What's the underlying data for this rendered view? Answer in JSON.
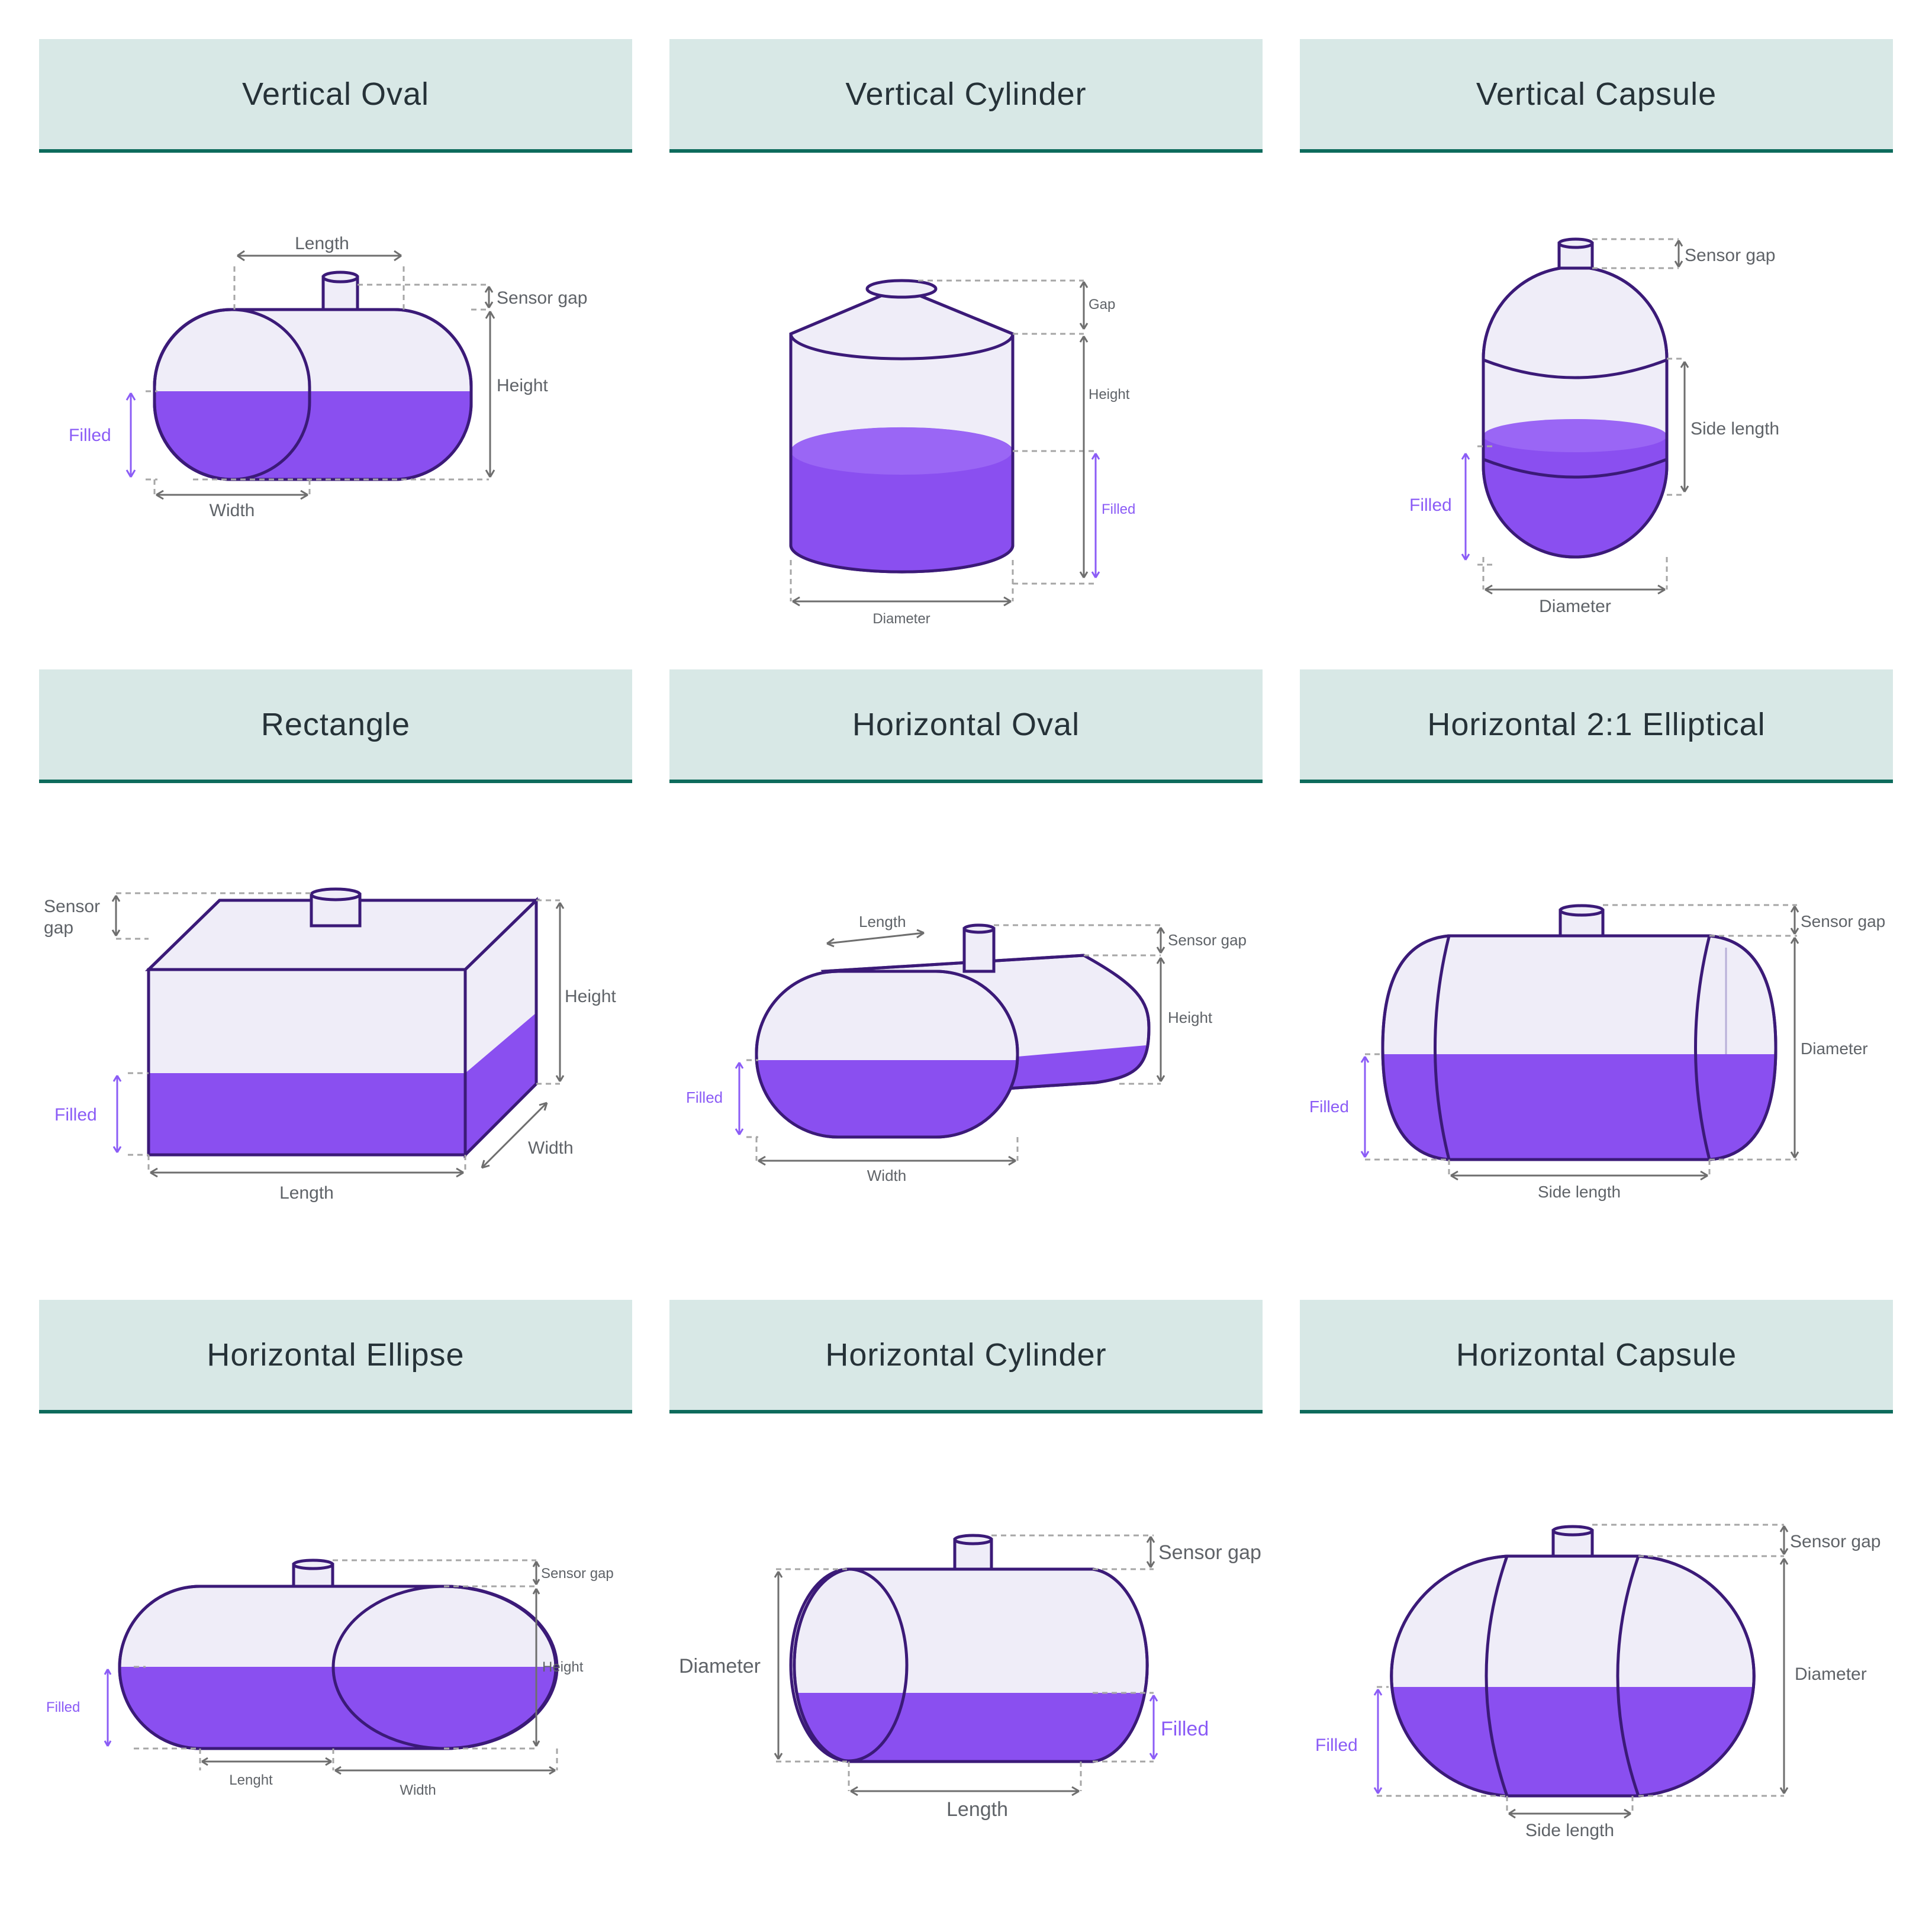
{
  "colors": {
    "header_bg": "#d8e8e6",
    "header_rule": "#0d6b5c",
    "tank_outline": "#3b1a78",
    "tank_empty": "#efedf8",
    "liquid": "#8a4ff0",
    "filled_label": "#8b5cf6",
    "dimension_label": "#5f6368"
  },
  "tanks": [
    {
      "title": "Vertical Oval",
      "labels": {
        "length": "Length",
        "sensor_gap": "Sensor gap",
        "height": "Height",
        "filled": "Filled",
        "width": "Width"
      }
    },
    {
      "title": "Vertical Cylinder",
      "labels": {
        "gap": "Gap",
        "height": "Height",
        "filled": "Filled",
        "diameter": "Diameter"
      }
    },
    {
      "title": "Vertical Capsule",
      "labels": {
        "sensor_gap": "Sensor gap",
        "side_length": "Side length",
        "filled": "Filled",
        "diameter": "Diameter"
      }
    },
    {
      "title": "Rectangle",
      "labels": {
        "sensor_line1": "Sensor",
        "sensor_line2": "gap",
        "height": "Height",
        "filled": "Filled",
        "width": "Width",
        "length": "Length"
      }
    },
    {
      "title": "Horizontal Oval",
      "labels": {
        "length": "Length",
        "sensor_gap": "Sensor gap",
        "height": "Height",
        "filled": "Filled",
        "width": "Width"
      }
    },
    {
      "title": "Horizontal 2:1 Elliptical",
      "labels": {
        "sensor_gap": "Sensor gap",
        "diameter": "Diameter",
        "filled": "Filled",
        "side_length": "Side length"
      }
    },
    {
      "title": "Horizontal Ellipse",
      "labels": {
        "sensor_gap": "Sensor gap",
        "height": "Height",
        "filled": "Filled",
        "length": "Lenght",
        "width": "Width"
      }
    },
    {
      "title": "Horizontal Cylinder",
      "labels": {
        "sensor_gap": "Sensor gap",
        "diameter": "Diameter",
        "filled": "Filled",
        "length": "Length"
      }
    },
    {
      "title": "Horizontal Capsule",
      "labels": {
        "sensor_gap": "Sensor gap",
        "diameter": "Diameter",
        "filled": "Filled",
        "side_length": "Side length"
      }
    }
  ]
}
